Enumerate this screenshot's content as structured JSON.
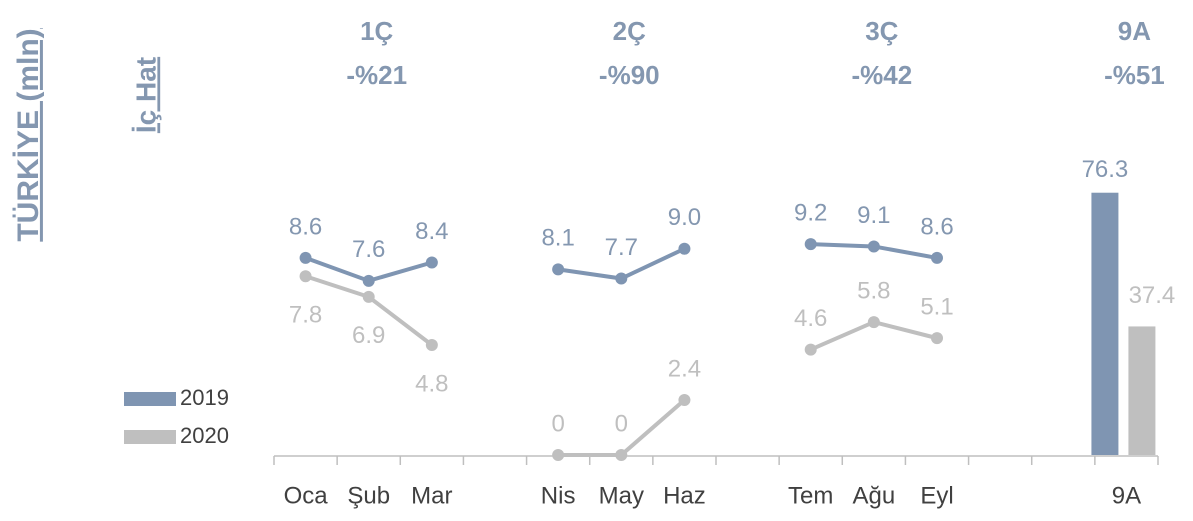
{
  "chart_data": {
    "type": "line",
    "title": "TÜRKİYE (mln)",
    "subtitle": "İç Hat",
    "categories": [
      "Oca",
      "Şub",
      "Mar",
      null,
      "Nis",
      "May",
      "Haz",
      null,
      "Tem",
      "Ağu",
      "Eyl",
      null,
      null,
      "9A"
    ],
    "bar_categories": [
      "9A"
    ],
    "quarters": [
      {
        "name": "1Ç",
        "change": "-%21",
        "categories": [
          "Oca",
          "Şub",
          "Mar"
        ]
      },
      {
        "name": "2Ç",
        "change": "-%90",
        "categories": [
          "Nis",
          "May",
          "Haz"
        ]
      },
      {
        "name": "3Ç",
        "change": "-%42",
        "categories": [
          "Tem",
          "Ağu",
          "Eyl"
        ]
      },
      {
        "name": "9A",
        "change": "-%51",
        "categories": [
          "9A"
        ]
      }
    ],
    "series": [
      {
        "name": "2019",
        "color": "#7f95b2",
        "values": [
          8.6,
          7.6,
          8.4,
          null,
          8.1,
          7.7,
          9.0,
          null,
          9.2,
          9.1,
          8.6,
          null,
          null,
          76.3
        ],
        "value_labels": [
          "8.6",
          "7.6",
          "8.4",
          null,
          "8.1",
          "7.7",
          "9.0",
          null,
          "9.2",
          "9.1",
          "8.6",
          null,
          null,
          "76.3"
        ]
      },
      {
        "name": "2020",
        "color": "#bfbfbf",
        "values": [
          7.8,
          6.9,
          4.8,
          null,
          0,
          0,
          2.4,
          null,
          4.6,
          5.8,
          5.1,
          null,
          null,
          37.4
        ]
      }
    ],
    "ylim": [
      0,
      12
    ],
    "y2lim": [
      0,
      80
    ]
  }
}
